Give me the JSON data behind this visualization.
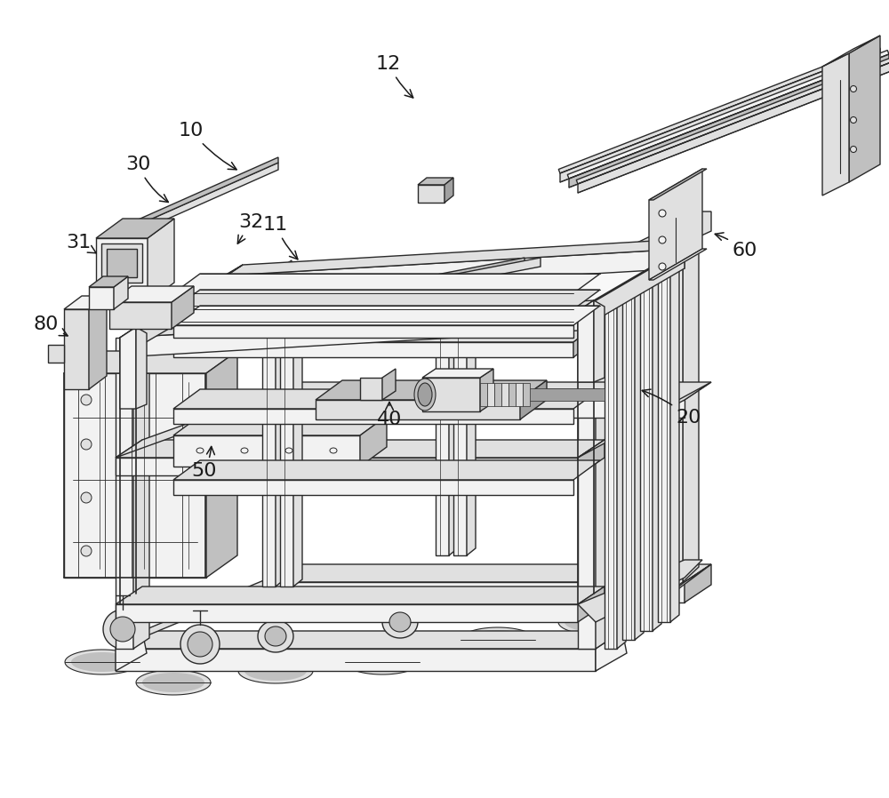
{
  "bg_color": "#ffffff",
  "lc": "#2a2a2a",
  "c_vlight": "#f2f2f2",
  "c_light": "#e0e0e0",
  "c_med": "#c0c0c0",
  "c_dark": "#a0a0a0",
  "c_darker": "#808080",
  "figsize": [
    10.0,
    8.98
  ],
  "dpi": 100,
  "labels": [
    [
      "10",
      215,
      147,
      270,
      193,
      0.1
    ],
    [
      "11",
      310,
      253,
      338,
      295,
      0.1
    ],
    [
      "12",
      437,
      72,
      468,
      113,
      0.1
    ],
    [
      "20",
      775,
      470,
      718,
      438,
      0.1
    ],
    [
      "30",
      155,
      185,
      193,
      230,
      0.15
    ],
    [
      "31",
      88,
      273,
      112,
      287,
      0.0
    ],
    [
      "32",
      282,
      250,
      265,
      278,
      0.0
    ],
    [
      "40",
      438,
      472,
      438,
      448,
      0.0
    ],
    [
      "50",
      230,
      530,
      238,
      498,
      0.1
    ],
    [
      "60",
      838,
      282,
      800,
      262,
      0.1
    ],
    [
      "80",
      52,
      365,
      80,
      380,
      0.0
    ]
  ]
}
